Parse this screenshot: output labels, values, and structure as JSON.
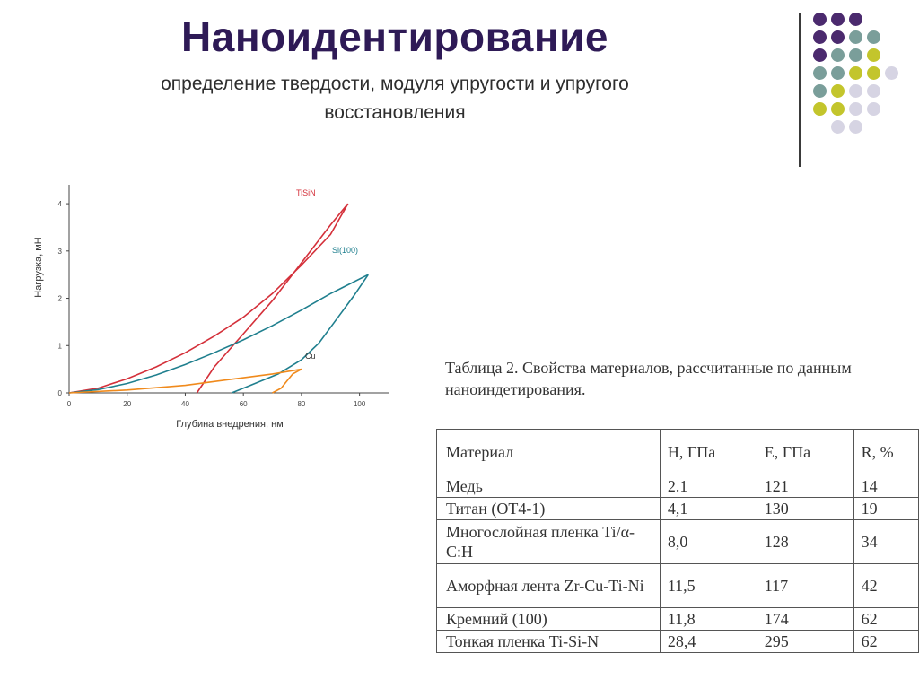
{
  "slide": {
    "title": "Наноидентирование",
    "subtitle": "определение твердости, модуля упругости и упругого восстановления"
  },
  "colors": {
    "title": "#2e1a56",
    "dot_purple": "#4b2a6e",
    "dot_teal": "#7a9e9a",
    "dot_yellow": "#c3c52c",
    "dot_light": "#d6d4e3"
  },
  "decor": {
    "dot_rows": [
      [
        "purple",
        "purple",
        "purple"
      ],
      [
        "purple",
        "purple",
        "teal",
        "teal"
      ],
      [
        "purple",
        "teal",
        "teal",
        "yellow"
      ],
      [
        "teal",
        "teal",
        "yellow",
        "yellow",
        "light"
      ],
      [
        "teal",
        "yellow",
        "light",
        "light"
      ],
      [
        "yellow",
        "yellow",
        "light",
        "light"
      ],
      [
        "light",
        "light"
      ]
    ]
  },
  "chart_data": {
    "type": "line",
    "title": "",
    "xlabel": "Глубина внедрения, нм",
    "ylabel": "Нагрузка, мН",
    "xlim": [
      0,
      110
    ],
    "ylim": [
      0,
      4.4
    ],
    "x_ticks": [
      0,
      20,
      40,
      60,
      80,
      100
    ],
    "y_ticks": [
      0,
      1,
      2,
      3,
      4
    ],
    "grid": false,
    "series": [
      {
        "name": "TiSiN",
        "color": "#d4303a",
        "loading": [
          [
            0,
            0
          ],
          [
            10,
            0.1
          ],
          [
            20,
            0.3
          ],
          [
            30,
            0.55
          ],
          [
            40,
            0.85
          ],
          [
            50,
            1.2
          ],
          [
            60,
            1.6
          ],
          [
            70,
            2.1
          ],
          [
            80,
            2.7
          ],
          [
            90,
            3.35
          ],
          [
            96,
            4.0
          ]
        ],
        "unloading": [
          [
            96,
            4.0
          ],
          [
            90,
            3.55
          ],
          [
            80,
            2.75
          ],
          [
            70,
            1.95
          ],
          [
            60,
            1.25
          ],
          [
            50,
            0.55
          ],
          [
            44,
            0.0
          ]
        ]
      },
      {
        "name": "Si(100)",
        "color": "#1f7f8e",
        "loading": [
          [
            0,
            0
          ],
          [
            10,
            0.07
          ],
          [
            20,
            0.2
          ],
          [
            30,
            0.38
          ],
          [
            40,
            0.6
          ],
          [
            50,
            0.85
          ],
          [
            60,
            1.12
          ],
          [
            70,
            1.42
          ],
          [
            80,
            1.75
          ],
          [
            90,
            2.1
          ],
          [
            103,
            2.5
          ]
        ],
        "unloading": [
          [
            103,
            2.5
          ],
          [
            98,
            2.05
          ],
          [
            92,
            1.55
          ],
          [
            86,
            1.05
          ],
          [
            80,
            0.7
          ],
          [
            72,
            0.4
          ],
          [
            62,
            0.15
          ],
          [
            56,
            0.0
          ]
        ]
      },
      {
        "name": "Cu",
        "color": "#f08a1c",
        "loading": [
          [
            0,
            0
          ],
          [
            20,
            0.06
          ],
          [
            40,
            0.16
          ],
          [
            55,
            0.28
          ],
          [
            70,
            0.4
          ],
          [
            80,
            0.5
          ]
        ],
        "unloading": [
          [
            80,
            0.5
          ],
          [
            77,
            0.4
          ],
          [
            75,
            0.25
          ],
          [
            73,
            0.1
          ],
          [
            70,
            0.0
          ]
        ]
      }
    ]
  },
  "table": {
    "caption": "Таблица 2. Свойства материалов, рассчитанные по данным наноиндетирования.",
    "headers": [
      "Материал",
      "H, ГПа",
      "E, ГПа",
      "R, %"
    ],
    "rows": [
      [
        "Медь",
        "2.1",
        "121",
        "14"
      ],
      [
        "Титан (ОТ4-1)",
        "4,1",
        "130",
        "19"
      ],
      [
        "Многослойная пленка Ti/α-C:H",
        "8,0",
        "128",
        "34"
      ],
      [
        "Аморфная лента Zr-Cu-Ti-Ni",
        "11,5",
        "117",
        "42"
      ],
      [
        "Кремний (100)",
        "11,8",
        "174",
        "62"
      ],
      [
        "Тонкая пленка Ti-Si-N",
        "28,4",
        "295",
        "62"
      ]
    ]
  }
}
